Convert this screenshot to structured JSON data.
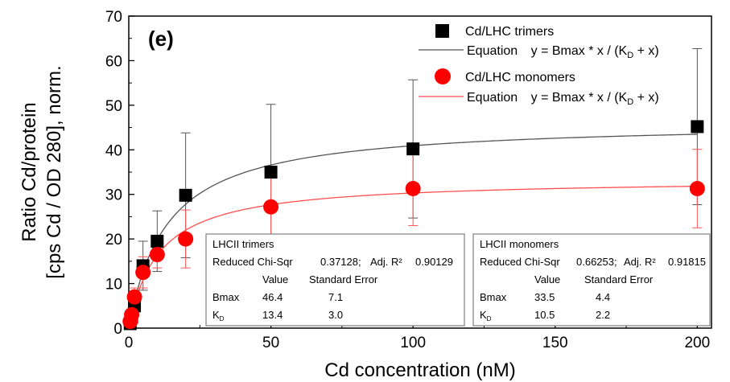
{
  "chart_data": {
    "type": "scatter",
    "panel_label": "(e)",
    "xlabel": "Cd concentration (nM)",
    "ylabel_line1": "Ratio Cd/protein",
    "ylabel_line2": "[cps Cd / OD 280], norm.",
    "xlim": [
      0,
      205
    ],
    "ylim": [
      0,
      70
    ],
    "x_ticks": [
      0,
      50,
      100,
      150,
      200
    ],
    "y_ticks": [
      0,
      10,
      20,
      30,
      40,
      50,
      60,
      70
    ],
    "legend_position": "top-right",
    "series": [
      {
        "name": "Cd/LHC trimers",
        "marker": "square",
        "color": "#000000",
        "x": [
          0.5,
          1,
          2,
          5,
          10,
          20,
          50,
          100,
          200
        ],
        "y": [
          1.0,
          2.5,
          5.0,
          14.0,
          19.5,
          29.8,
          35.0,
          40.2,
          45.2
        ],
        "yerr": [
          0.5,
          1.0,
          1.5,
          5.5,
          6.8,
          14.0,
          15.2,
          15.5,
          17.5
        ],
        "fit": {
          "label": "Equation",
          "formula": "y = Bmax * x / (K",
          "formula_sub": "D",
          "formula_end": " + x)",
          "bmax": 46.4,
          "kd": 13.4,
          "color": "#555555"
        }
      },
      {
        "name": "Cd/LHC monomers",
        "marker": "circle",
        "color": "#ff0000",
        "x": [
          0.5,
          1,
          2,
          5,
          10,
          20,
          50,
          100,
          200
        ],
        "y": [
          1.5,
          3.0,
          7.0,
          12.5,
          16.5,
          20.0,
          27.2,
          31.3,
          31.3
        ],
        "yerr": [
          0.7,
          1.2,
          2.0,
          3.5,
          3.0,
          6.5,
          7.5,
          8.3,
          8.8
        ],
        "fit": {
          "label": "Equation",
          "formula": "y = Bmax * x / (K",
          "formula_sub": "D",
          "formula_end": " + x)",
          "bmax": 33.5,
          "kd": 10.5,
          "color": "#ff4d4d"
        }
      }
    ],
    "stat_boxes": [
      {
        "title": "LHCII trimers",
        "chi_label": "Reduced Chi-Sqr",
        "chi_value": "0.37128;",
        "r2_label": "Adj. R²",
        "r2_value": "0.90129",
        "col_value": "Value",
        "col_error": "Standard Error",
        "row1_name": "Bmax",
        "row1_value": "46.4",
        "row1_error": "7.1",
        "row2_name": "K",
        "row2_sub": "D",
        "row2_value": "13.4",
        "row2_error": "3.0"
      },
      {
        "title": "LHCII monomers",
        "chi_label": "Reduced Chi-Sqr",
        "chi_value": "0.66253;",
        "r2_label": "Adj. R²",
        "r2_value": "0.91815",
        "col_value": "Value",
        "col_error": "Standard Error",
        "row1_name": "Bmax",
        "row1_value": "33.5",
        "row1_error": "4.4",
        "row2_name": "K",
        "row2_sub": "D",
        "row2_value": "10.5",
        "row2_error": "2.2"
      }
    ]
  }
}
